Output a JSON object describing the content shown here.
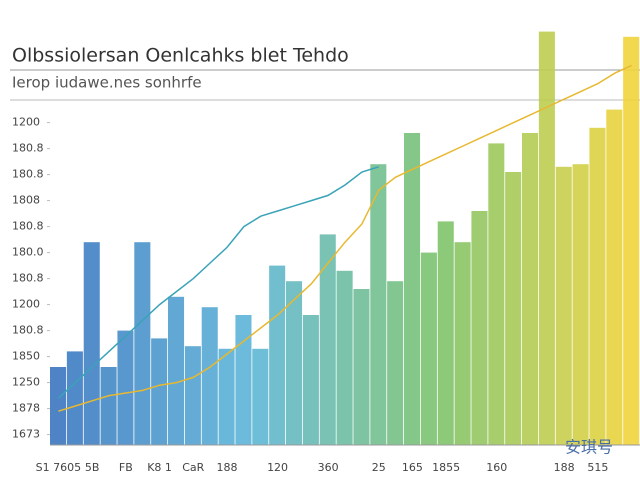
{
  "chart_data": {
    "type": "bar",
    "title": "Olbssiolersan Oenlcahks blet Tehdo",
    "subtitle": "Ierop iudawe.nes sonhrfe",
    "watermark": "安琪号",
    "ylim": [
      0,
      16
    ],
    "yticks": [
      {
        "value": 0.4,
        "label": "1673"
      },
      {
        "value": 1.4,
        "label": "1878"
      },
      {
        "value": 2.4,
        "label": "1250"
      },
      {
        "value": 3.4,
        "label": "1850"
      },
      {
        "value": 4.4,
        "label": "180.8"
      },
      {
        "value": 5.4,
        "label": "1200"
      },
      {
        "value": 6.4,
        "label": "180.8"
      },
      {
        "value": 7.4,
        "label": "180.0"
      },
      {
        "value": 8.4,
        "label": "180.8"
      },
      {
        "value": 9.4,
        "label": "1808"
      },
      {
        "value": 10.4,
        "label": "180.8"
      },
      {
        "value": 11.4,
        "label": "180.8"
      },
      {
        "value": 12.4,
        "label": "1200"
      }
    ],
    "categories": [
      "S1 7605",
      null,
      "5B",
      null,
      "FB",
      null,
      "K8 1",
      null,
      "CaR",
      null,
      "188",
      null,
      null,
      "120",
      null,
      null,
      "360",
      null,
      null,
      "25",
      null,
      "165",
      null,
      "1855",
      null,
      null,
      "160",
      null,
      null,
      null,
      "188",
      null,
      "515",
      null,
      null
    ],
    "palette": [
      "#3b77c0",
      "#5db6d9",
      "#7dc36b",
      "#f1d43b"
    ],
    "values": [
      3.0,
      3.6,
      7.8,
      3.0,
      4.4,
      7.8,
      4.1,
      5.7,
      3.8,
      5.3,
      3.7,
      5.0,
      3.7,
      6.9,
      6.3,
      5.0,
      8.1,
      6.7,
      6.0,
      10.8,
      6.3,
      12.0,
      7.4,
      8.6,
      7.8,
      9.0,
      11.6,
      10.5,
      12.0,
      15.9,
      10.7,
      10.8,
      12.2,
      12.9,
      15.7
    ],
    "lines": [
      {
        "color": "#e8b830",
        "values": [
          1.3,
          1.5,
          1.7,
          1.9,
          2.0,
          2.1,
          2.3,
          2.4,
          2.6,
          3.0,
          3.5,
          4.0,
          4.5,
          5.0,
          5.6,
          6.2,
          7.0,
          7.8,
          8.5,
          9.8,
          10.3,
          10.6,
          10.9,
          11.2,
          11.5,
          11.8,
          12.1,
          12.4,
          12.7,
          13.0,
          13.3,
          13.6,
          13.9,
          14.3,
          14.6
        ]
      },
      {
        "color": "#3aa3b8",
        "values": [
          1.8,
          2.4,
          3.0,
          3.6,
          4.2,
          4.8,
          5.4,
          5.9,
          6.4,
          7.0,
          7.6,
          8.4,
          8.8,
          9.0,
          9.2,
          9.4,
          9.6,
          10.0,
          10.5,
          10.7,
          null,
          null,
          null,
          null,
          null,
          null,
          null,
          null,
          null,
          null,
          null,
          null,
          null,
          null,
          null
        ]
      }
    ]
  }
}
